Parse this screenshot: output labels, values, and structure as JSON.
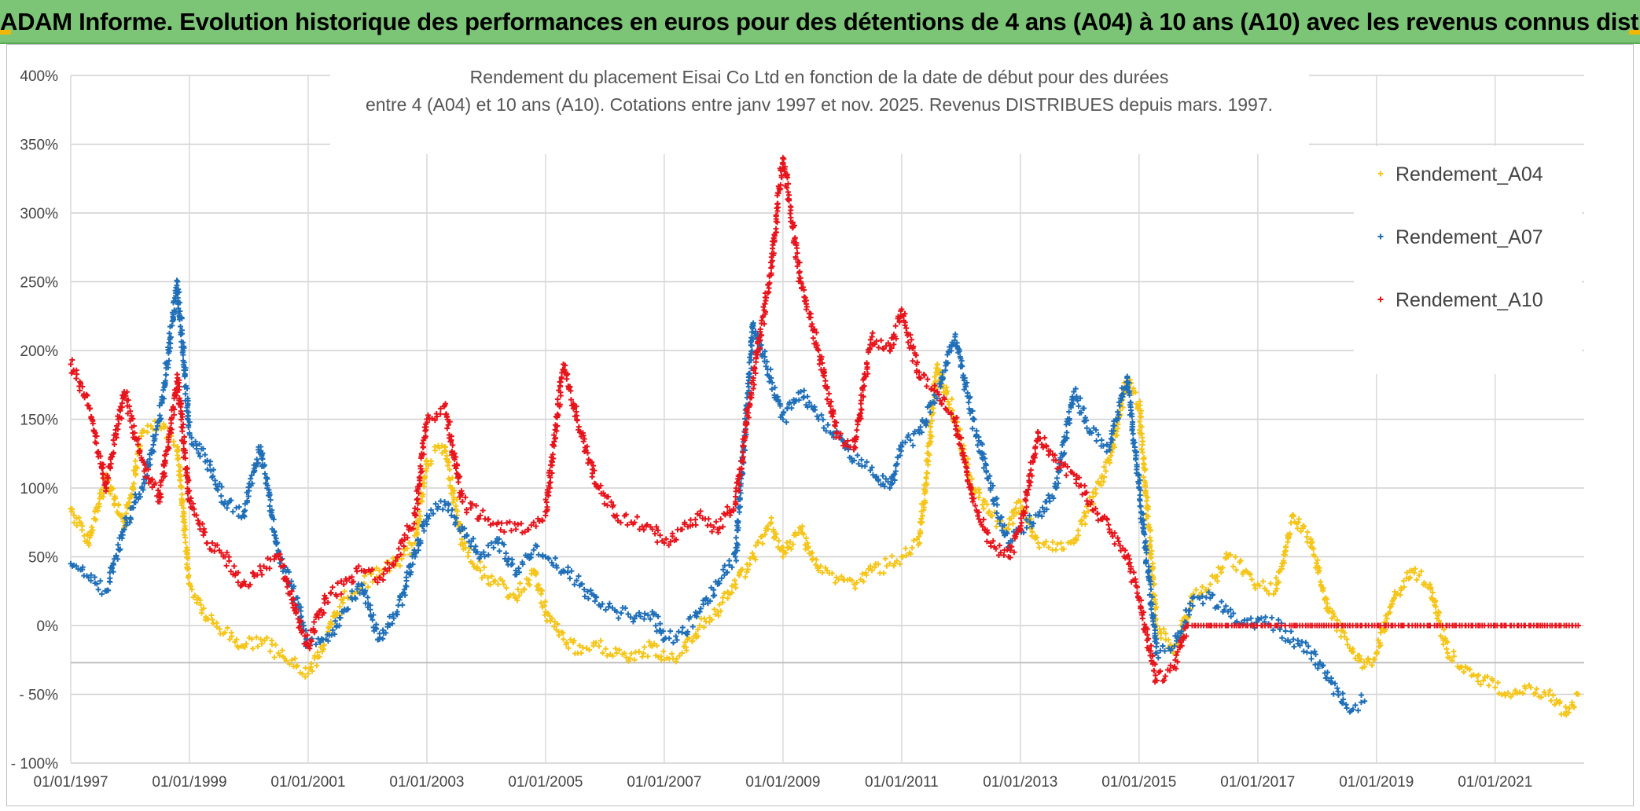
{
  "header": {
    "title": "ADAM Informe. Evolution historique des performances en euros pour des détentions de 4 ans (A04) à 10 ans (A10) avec les revenus connus distribués"
  },
  "chart_data": {
    "type": "scatter",
    "title_line1": "Rendement du placement Eisai Co Ltd en fonction de la date de début pour des durées",
    "title_line2": "entre 4 (A04) et 10 ans (A10). Cotations entre janv 1997 et nov. 2025. Revenus DISTRIBUES depuis mars. 1997.",
    "xlabel": "",
    "ylabel": "",
    "ylim": [
      -100,
      400
    ],
    "xlim": [
      1997.0,
      2022.5
    ],
    "y_ticks": [
      400,
      350,
      300,
      250,
      200,
      150,
      100,
      50,
      0,
      -50,
      -100
    ],
    "y_tick_labels": [
      "400%",
      "350%",
      "300%",
      "250%",
      "200%",
      "150%",
      "100%",
      "50%",
      "0%",
      "- 50%",
      "- 100%"
    ],
    "x_ticks": [
      1997,
      1999,
      2001,
      2003,
      2005,
      2007,
      2009,
      2011,
      2013,
      2015,
      2017,
      2019,
      2021
    ],
    "x_tick_labels": [
      "01/01/1997",
      "01/01/1999",
      "01/01/2001",
      "01/01/2003",
      "01/01/2005",
      "01/01/2007",
      "01/01/2009",
      "01/01/2011",
      "01/01/2013",
      "01/01/2015",
      "01/01/2017",
      "01/01/2019",
      "01/01/2021"
    ],
    "grid": true,
    "legend_position": "right",
    "series": [
      {
        "name": "Rendement_A04",
        "color": "#f5c518",
        "x": [
          1997.0,
          1997.3,
          1997.6,
          1997.9,
          1998.2,
          1998.5,
          1998.8,
          1999.0,
          1999.3,
          1999.6,
          1999.9,
          2000.2,
          2000.5,
          2000.8,
          2001.0,
          2001.3,
          2001.6,
          2001.9,
          2002.2,
          2002.5,
          2002.8,
          2003.0,
          2003.3,
          2003.6,
          2003.9,
          2004.2,
          2004.5,
          2004.8,
          2005.0,
          2005.3,
          2005.6,
          2005.9,
          2006.2,
          2006.5,
          2006.8,
          2007.0,
          2007.3,
          2007.6,
          2007.9,
          2008.2,
          2008.5,
          2008.8,
          2009.0,
          2009.3,
          2009.6,
          2009.9,
          2010.2,
          2010.5,
          2010.8,
          2011.0,
          2011.3,
          2011.6,
          2011.9,
          2012.2,
          2012.5,
          2012.8,
          2013.0,
          2013.3,
          2013.6,
          2013.9,
          2014.2,
          2014.5,
          2014.8,
          2015.0,
          2015.3,
          2015.6,
          2015.9,
          2016.2,
          2016.5,
          2016.8,
          2017.0,
          2017.3,
          2017.6,
          2017.9,
          2018.2,
          2018.5,
          2018.8,
          2019.0,
          2019.3,
          2019.6,
          2019.9,
          2020.2,
          2020.5,
          2020.8,
          2021.0,
          2021.3,
          2021.6,
          2021.9,
          2022.2,
          2022.4
        ],
        "values": [
          85,
          60,
          110,
          70,
          140,
          145,
          130,
          30,
          5,
          -5,
          -15,
          -10,
          -20,
          -30,
          -35,
          -10,
          20,
          30,
          40,
          45,
          60,
          120,
          130,
          60,
          40,
          30,
          20,
          40,
          10,
          -10,
          -20,
          -15,
          -20,
          -25,
          -15,
          -25,
          -20,
          0,
          10,
          30,
          50,
          75,
          50,
          70,
          40,
          35,
          30,
          40,
          45,
          50,
          60,
          190,
          150,
          100,
          80,
          70,
          90,
          60,
          55,
          60,
          90,
          120,
          180,
          160,
          0,
          -20,
          20,
          30,
          50,
          40,
          30,
          25,
          80,
          60,
          10,
          -10,
          -30,
          -20,
          20,
          40,
          30,
          -20,
          -30,
          -40,
          -45,
          -50,
          -45,
          -50,
          -65,
          -50
        ]
      },
      {
        "name": "Rendement_A07",
        "color": "#1f6fb8",
        "x": [
          1997.0,
          1997.3,
          1997.6,
          1997.9,
          1998.2,
          1998.5,
          1998.8,
          1999.0,
          1999.3,
          1999.6,
          1999.9,
          2000.2,
          2000.5,
          2000.8,
          2001.0,
          2001.3,
          2001.6,
          2001.9,
          2002.2,
          2002.5,
          2002.8,
          2003.0,
          2003.3,
          2003.6,
          2003.9,
          2004.2,
          2004.5,
          2004.8,
          2005.0,
          2005.3,
          2005.6,
          2005.9,
          2006.2,
          2006.5,
          2006.8,
          2007.0,
          2007.3,
          2007.6,
          2007.9,
          2008.2,
          2008.5,
          2008.8,
          2009.0,
          2009.3,
          2009.6,
          2009.9,
          2010.2,
          2010.5,
          2010.8,
          2011.0,
          2011.3,
          2011.6,
          2011.9,
          2012.2,
          2012.5,
          2012.8,
          2013.0,
          2013.3,
          2013.6,
          2013.9,
          2014.2,
          2014.5,
          2014.8,
          2015.0,
          2015.3,
          2015.6,
          2015.9,
          2016.2,
          2016.5,
          2016.8,
          2017.0,
          2017.3,
          2017.6,
          2017.9,
          2018.2,
          2018.5,
          2018.8
        ],
        "values": [
          45,
          35,
          25,
          70,
          100,
          150,
          250,
          140,
          120,
          90,
          80,
          130,
          50,
          20,
          -15,
          -10,
          10,
          30,
          -10,
          10,
          50,
          80,
          90,
          70,
          50,
          60,
          40,
          55,
          50,
          40,
          30,
          15,
          10,
          5,
          10,
          -10,
          -5,
          10,
          30,
          50,
          220,
          180,
          150,
          170,
          150,
          140,
          120,
          115,
          100,
          130,
          140,
          170,
          210,
          150,
          100,
          60,
          70,
          80,
          100,
          170,
          140,
          130,
          180,
          100,
          -20,
          -15,
          20,
          20,
          10,
          0,
          5,
          0,
          -10,
          -20,
          -40,
          -60,
          -55
        ]
      },
      {
        "name": "Rendement_A10",
        "color": "#e8141c",
        "x": [
          1997.0,
          1997.3,
          1997.6,
          1997.9,
          1998.2,
          1998.5,
          1998.8,
          1999.0,
          1999.3,
          1999.6,
          1999.9,
          2000.2,
          2000.5,
          2000.8,
          2001.0,
          2001.3,
          2001.6,
          2001.9,
          2002.2,
          2002.5,
          2002.8,
          2003.0,
          2003.3,
          2003.6,
          2003.9,
          2004.2,
          2004.5,
          2004.8,
          2005.0,
          2005.3,
          2005.6,
          2005.9,
          2006.2,
          2006.5,
          2006.8,
          2007.0,
          2007.3,
          2007.6,
          2007.9,
          2008.2,
          2008.5,
          2008.8,
          2009.0,
          2009.3,
          2009.6,
          2009.9,
          2010.2,
          2010.5,
          2010.8,
          2011.0,
          2011.3,
          2011.6,
          2011.9,
          2012.2,
          2012.5,
          2012.8,
          2013.0,
          2013.3,
          2013.6,
          2013.9,
          2014.2,
          2014.5,
          2014.8,
          2015.0,
          2015.3,
          2015.6,
          2015.8,
          2016.2,
          2016.8,
          2017.4,
          2018.0,
          2018.6,
          2019.2,
          2019.8,
          2020.4,
          2021.0,
          2021.6,
          2022.2,
          2022.4
        ],
        "values": [
          190,
          160,
          100,
          170,
          120,
          90,
          180,
          90,
          60,
          50,
          30,
          40,
          50,
          10,
          -15,
          20,
          30,
          40,
          35,
          50,
          80,
          150,
          160,
          90,
          80,
          75,
          70,
          75,
          80,
          190,
          140,
          100,
          80,
          75,
          70,
          60,
          70,
          80,
          70,
          90,
          180,
          260,
          340,
          250,
          200,
          140,
          130,
          210,
          200,
          230,
          180,
          170,
          150,
          90,
          60,
          50,
          70,
          140,
          120,
          110,
          90,
          70,
          50,
          20,
          -40,
          -30,
          0,
          0,
          0,
          0,
          0,
          0,
          0,
          0,
          0,
          0,
          0,
          0,
          0
        ]
      }
    ]
  }
}
